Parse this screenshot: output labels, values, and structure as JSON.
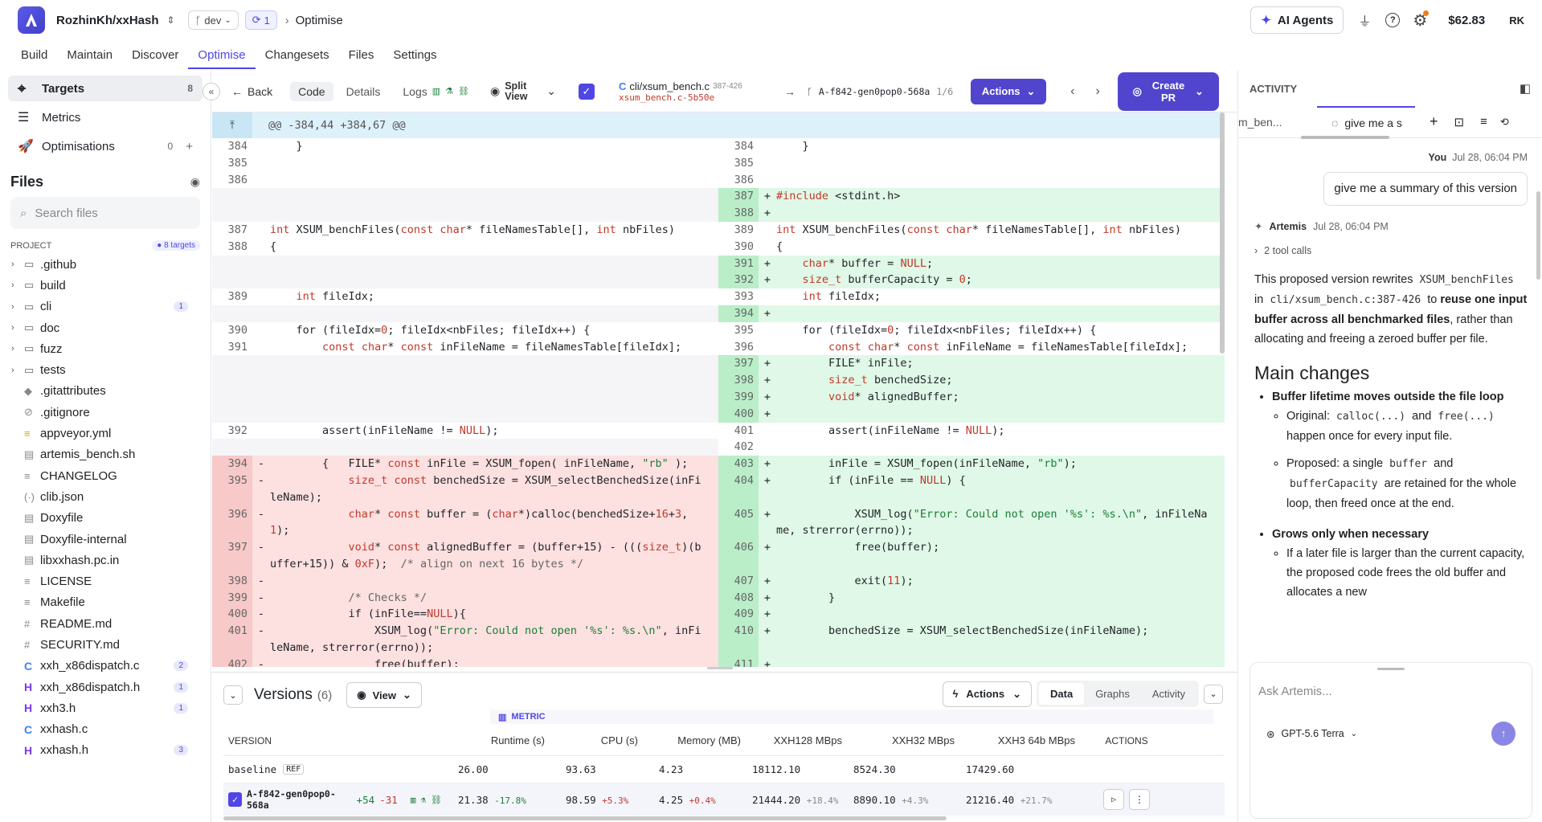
{
  "topbar": {
    "repo": "RozhinKh/xxHash",
    "branch": "dev",
    "sync_count": "1",
    "page": "Optimise",
    "agents": "AI Agents",
    "balance": "$62.83",
    "user": "RK"
  },
  "nav": [
    "Build",
    "Maintain",
    "Discover",
    "Optimise",
    "Changesets",
    "Files",
    "Settings"
  ],
  "sidebar": {
    "targets": "Targets",
    "targets_count": "8",
    "metrics": "Metrics",
    "optimisations": "Optimisations",
    "optimisations_count": "0",
    "files_title": "Files",
    "search_placeholder": "Search files",
    "project_label": "PROJECT",
    "project_targets": "● 8 targets",
    "files": [
      {
        "name": ".github",
        "type": "dir",
        "icon": "folder-icon"
      },
      {
        "name": "build",
        "type": "dir",
        "icon": "folder-icon"
      },
      {
        "name": "cli",
        "type": "dir",
        "icon": "folder-icon",
        "badge": "1"
      },
      {
        "name": "doc",
        "type": "dir",
        "icon": "folder-icon"
      },
      {
        "name": "fuzz",
        "type": "dir",
        "icon": "folder-icon"
      },
      {
        "name": "tests",
        "type": "dir",
        "icon": "folder-icon"
      },
      {
        "name": ".gitattributes",
        "icon": "git-icon"
      },
      {
        "name": ".gitignore",
        "icon": "ignore-icon"
      },
      {
        "name": "appveyor.yml",
        "icon": "yaml-icon"
      },
      {
        "name": "artemis_bench.sh",
        "icon": "file-icon"
      },
      {
        "name": "CHANGELOG",
        "icon": "text-icon"
      },
      {
        "name": "clib.json",
        "icon": "json-icon"
      },
      {
        "name": "Doxyfile",
        "icon": "file-icon"
      },
      {
        "name": "Doxyfile-internal",
        "icon": "file-icon"
      },
      {
        "name": "libxxhash.pc.in",
        "icon": "file-icon"
      },
      {
        "name": "LICENSE",
        "icon": "text-icon"
      },
      {
        "name": "Makefile",
        "icon": "text-icon"
      },
      {
        "name": "README.md",
        "icon": "markdown-icon"
      },
      {
        "name": "SECURITY.md",
        "icon": "markdown-icon"
      },
      {
        "name": "xxh_x86dispatch.c",
        "icon": "c-file-icon",
        "badge": "2"
      },
      {
        "name": "xxh_x86dispatch.h",
        "icon": "h-file-icon",
        "badge": "1"
      },
      {
        "name": "xxh3.h",
        "icon": "h-file-icon",
        "badge": "1"
      },
      {
        "name": "xxhash.c",
        "icon": "c-file-icon"
      },
      {
        "name": "xxhash.h",
        "icon": "h-file-icon",
        "badge": "3"
      }
    ]
  },
  "toolbar": {
    "back": "Back",
    "code": "Code",
    "details": "Details",
    "logs": "Logs",
    "split_view": "Split View",
    "file_path": "cli/xsum_bench.c",
    "file_range": "387-426",
    "file_sub": "xsum_bench.c-5b50e",
    "version": "A-f842-gen0pop0-568a",
    "version_pos": "1/6",
    "actions": "Actions",
    "create_pr": "Create PR"
  },
  "diff": {
    "hunk": "@@ -384,44 +384,67 @@",
    "rows": [
      {
        "l": [
          "384",
          "",
          "    }"
        ],
        "r": [
          "384",
          "",
          "    }"
        ]
      },
      {
        "l": [
          "385",
          "",
          ""
        ],
        "r": [
          "385",
          "",
          ""
        ]
      },
      {
        "l": [
          "386",
          "",
          ""
        ],
        "r": [
          "386",
          "",
          ""
        ]
      },
      {
        "l": null,
        "r": [
          "387",
          "+",
          "#include <stdint.h>",
          "add"
        ]
      },
      {
        "l": null,
        "r": [
          "388",
          "+",
          "",
          "add"
        ]
      },
      {
        "l": [
          "387",
          "",
          "int XSUM_benchFiles(const char* fileNamesTable[], int nbFiles)"
        ],
        "r": [
          "389",
          "",
          "int XSUM_benchFiles(const char* fileNamesTable[], int nbFiles)"
        ]
      },
      {
        "l": [
          "388",
          "",
          "{"
        ],
        "r": [
          "390",
          "",
          "{"
        ]
      },
      {
        "l": null,
        "r": [
          "391",
          "+",
          "    char* buffer = NULL;",
          "add"
        ]
      },
      {
        "l": null,
        "r": [
          "392",
          "+",
          "    size_t bufferCapacity = 0;",
          "add"
        ]
      },
      {
        "l": [
          "389",
          "",
          "    int fileIdx;"
        ],
        "r": [
          "393",
          "",
          "    int fileIdx;"
        ]
      },
      {
        "l": null,
        "r": [
          "394",
          "+",
          "",
          "add"
        ]
      },
      {
        "l": [
          "390",
          "",
          "    for (fileIdx=0; fileIdx<nbFiles; fileIdx++) {"
        ],
        "r": [
          "395",
          "",
          "    for (fileIdx=0; fileIdx<nbFiles; fileIdx++) {"
        ]
      },
      {
        "l": [
          "391",
          "",
          "        const char* const inFileName = fileNamesTable[fileIdx];"
        ],
        "r": [
          "396",
          "",
          "        const char* const inFileName = fileNamesTable[fileIdx];"
        ]
      },
      {
        "l": null,
        "r": [
          "397",
          "+",
          "        FILE* inFile;",
          "add"
        ]
      },
      {
        "l": null,
        "r": [
          "398",
          "+",
          "        size_t benchedSize;",
          "add"
        ]
      },
      {
        "l": null,
        "r": [
          "399",
          "+",
          "        void* alignedBuffer;",
          "add"
        ]
      },
      {
        "l": null,
        "r": [
          "400",
          "+",
          "",
          "add"
        ]
      },
      {
        "l": [
          "392",
          "",
          "        assert(inFileName != NULL);"
        ],
        "r": [
          "401",
          "",
          "        assert(inFileName != NULL);"
        ]
      },
      {
        "l": null,
        "r": [
          "402",
          "",
          ""
        ]
      },
      {
        "l": [
          "394",
          "-",
          "        {   FILE* const inFile = XSUM_fopen( inFileName, \"rb\" );",
          "del"
        ],
        "r": [
          "403",
          "+",
          "        inFile = XSUM_fopen(inFileName, \"rb\");",
          "add"
        ]
      },
      {
        "l": [
          "395",
          "-",
          "            size_t const benchedSize = XSUM_selectBenchedSize(inFi",
          "del"
        ],
        "r": [
          "404",
          "+",
          "        if (inFile == NULL) {",
          "add"
        ]
      },
      {
        "l": [
          "",
          "",
          "leName);",
          "del"
        ],
        "r": [
          "",
          "",
          "",
          "add"
        ]
      },
      {
        "l": [
          "396",
          "-",
          "            char* const buffer = (char*)calloc(benchedSize+16+3,",
          "del"
        ],
        "r": [
          "405",
          "+",
          "            XSUM_log(\"Error: Could not open '%s': %s.\\n\", inFileNa",
          "add"
        ]
      },
      {
        "l": [
          "",
          "",
          "1);",
          "del"
        ],
        "r": [
          "",
          "",
          "me, strerror(errno));",
          "add"
        ]
      },
      {
        "l": [
          "397",
          "-",
          "            void* const alignedBuffer = (buffer+15) - (((size_t)(b",
          "del"
        ],
        "r": [
          "406",
          "+",
          "            free(buffer);",
          "add"
        ]
      },
      {
        "l": [
          "",
          "",
          "uffer+15)) & 0xF);  /* align on next 16 bytes */",
          "del"
        ],
        "r": [
          "",
          "",
          "",
          "add"
        ]
      },
      {
        "l": [
          "398",
          "-",
          "",
          "del"
        ],
        "r": [
          "407",
          "+",
          "            exit(11);",
          "add"
        ]
      },
      {
        "l": [
          "399",
          "-",
          "            /* Checks */",
          "del"
        ],
        "r": [
          "408",
          "+",
          "        }",
          "add"
        ]
      },
      {
        "l": [
          "400",
          "-",
          "            if (inFile==NULL){",
          "del"
        ],
        "r": [
          "409",
          "+",
          "",
          "add"
        ]
      },
      {
        "l": [
          "401",
          "-",
          "                XSUM_log(\"Error: Could not open '%s': %s.\\n\", inFi",
          "del"
        ],
        "r": [
          "410",
          "+",
          "        benchedSize = XSUM_selectBenchedSize(inFileName);",
          "add"
        ]
      },
      {
        "l": [
          "",
          "",
          "leName, strerror(errno));",
          "del"
        ],
        "r": [
          "",
          "",
          "",
          "add"
        ]
      },
      {
        "l": [
          "402",
          "-",
          "                free(buffer);",
          "del"
        ],
        "r": [
          "411",
          "+",
          "",
          "add"
        ]
      }
    ]
  },
  "versions": {
    "title": "Versions",
    "count": "(6)",
    "view": "View",
    "actions": "Actions",
    "tabs": [
      "Data",
      "Graphs",
      "Activity"
    ],
    "metric_label": "METRIC",
    "columns": [
      "VERSION",
      "Runtime (s)",
      "CPU (s)",
      "Memory (MB)",
      "XXH128 MBps",
      "XXH32 MBps",
      "XXH3 64b MBps",
      "ACTIONS"
    ],
    "baseline": {
      "name": "baseline",
      "tag": "REF",
      "values": [
        "26.00",
        "93.63",
        "4.23",
        "18112.10",
        "8524.30",
        "17429.60"
      ]
    },
    "row": {
      "name": "A-f842-gen0pop0-568a",
      "plus": "+54",
      "minus": "-31",
      "values": [
        "21.38",
        "98.59",
        "4.25",
        "21444.20",
        "8890.10",
        "21216.40"
      ],
      "deltas": [
        "-17.8%",
        "+5.3%",
        "+0.4%",
        "+18.4%",
        "+4.3%",
        "+21.7%"
      ]
    }
  },
  "activity": {
    "title": "ACTIVITY",
    "tab1": "m_ben...",
    "tab2": "give me a s",
    "you": "You",
    "you_time": "Jul 28, 06:04 PM",
    "user_msg": "give me a summary of this version",
    "agent": "Artemis",
    "agent_time": "Jul 28, 06:04 PM",
    "tool_calls": "2 tool calls",
    "p1a": "This proposed version rewrites",
    "p1b": "XSUM_benchFiles",
    "p1c": "in",
    "p1d": "cli/xsum_bench.c:387-426",
    "p1e": "to",
    "p1f": "reuse one input buffer across all benchmarked files",
    "p1g": ", rather than allocating and freeing a zeroed buffer per file.",
    "h2": "Main changes",
    "b1": "Buffer lifetime moves outside the file loop",
    "b1a1": "Original:",
    "b1a2": "calloc(...)",
    "b1a3": "and",
    "b1a4": "free(...)",
    "b1a5": "happen once for every input file.",
    "b1b1": "Proposed: a single",
    "b1b2": "buffer",
    "b1b3": "and",
    "b1b4": "bufferCapacity",
    "b1b5": "are retained for the whole loop, then freed once at the end.",
    "b2": "Grows only when necessary",
    "b2a": "If a later file is larger than the current capacity, the proposed code frees the old buffer and allocates a new",
    "ask_placeholder": "Ask Artemis...",
    "model": "GPT-5.6 Terra"
  }
}
